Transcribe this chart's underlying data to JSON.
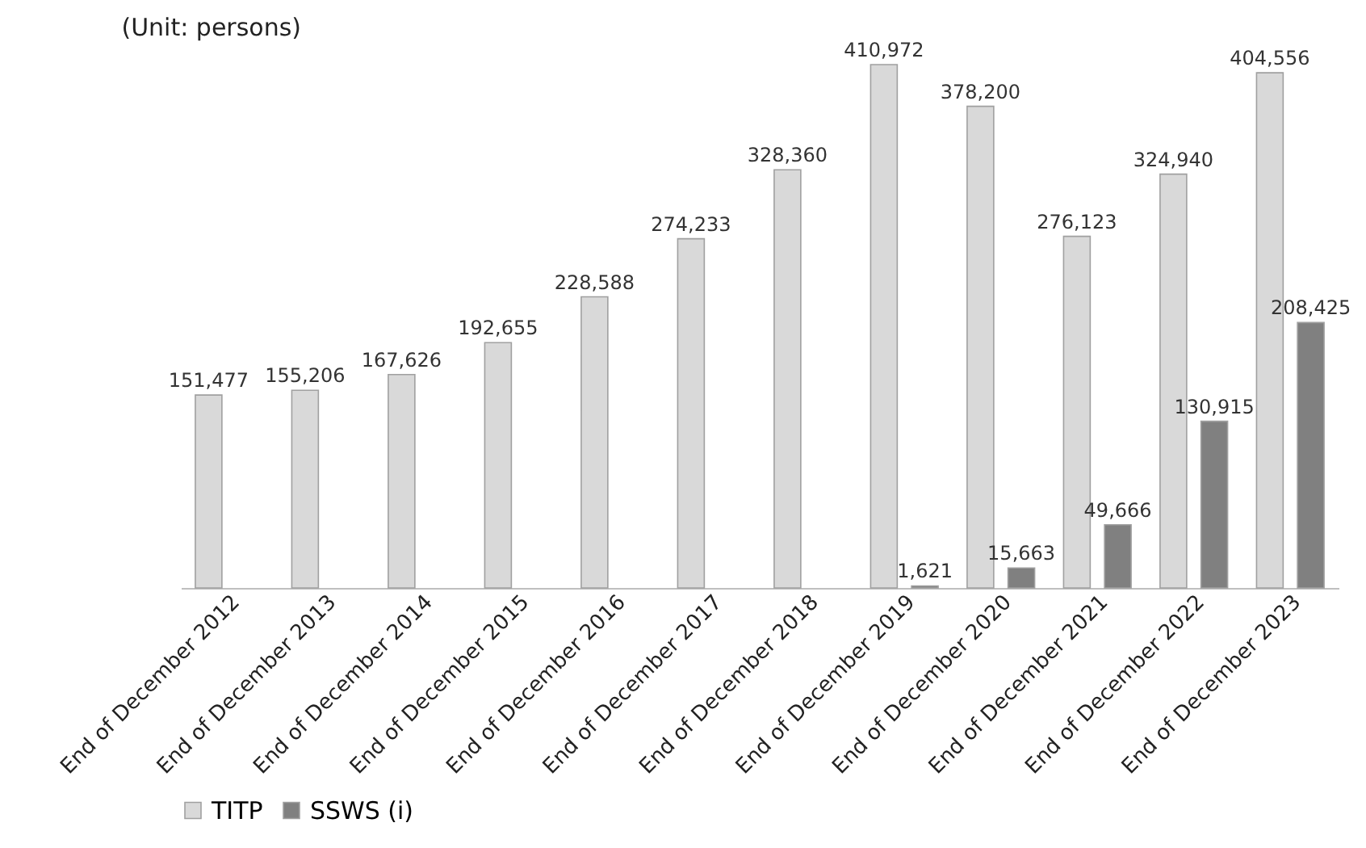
{
  "chart_data": {
    "type": "bar",
    "annotations": [
      "(Unit: persons)"
    ],
    "categories": [
      "End of December 2012",
      "End of December 2013",
      "End of December 2014",
      "End of December 2015",
      "End of December 2016",
      "End of December 2017",
      "End of December 2018",
      "End of December 2019",
      "End of December 2020",
      "End of December 2021",
      "End of December 2022",
      "End of December 2023"
    ],
    "series": [
      {
        "name": "TITP",
        "color": "#d9d9d9",
        "values": [
          151477,
          155206,
          167626,
          192655,
          228588,
          274233,
          328360,
          410972,
          378200,
          276123,
          324940,
          404556
        ],
        "value_labels": [
          "151,477",
          "155,206",
          "167,626",
          "192,655",
          "228,588",
          "274,233",
          "328,360",
          "410,972",
          "378,200",
          "276,123",
          "324,940",
          "404,556"
        ]
      },
      {
        "name": "SSWS (i)",
        "color": "#808080",
        "values": [
          null,
          null,
          null,
          null,
          null,
          null,
          null,
          1621,
          15663,
          49666,
          130915,
          208425
        ],
        "value_labels": [
          null,
          null,
          null,
          null,
          null,
          null,
          null,
          "1,621",
          "15,663",
          "49,666",
          "130,915",
          "208,425"
        ]
      }
    ],
    "tick_labels": "x",
    "legend": "bottom"
  }
}
